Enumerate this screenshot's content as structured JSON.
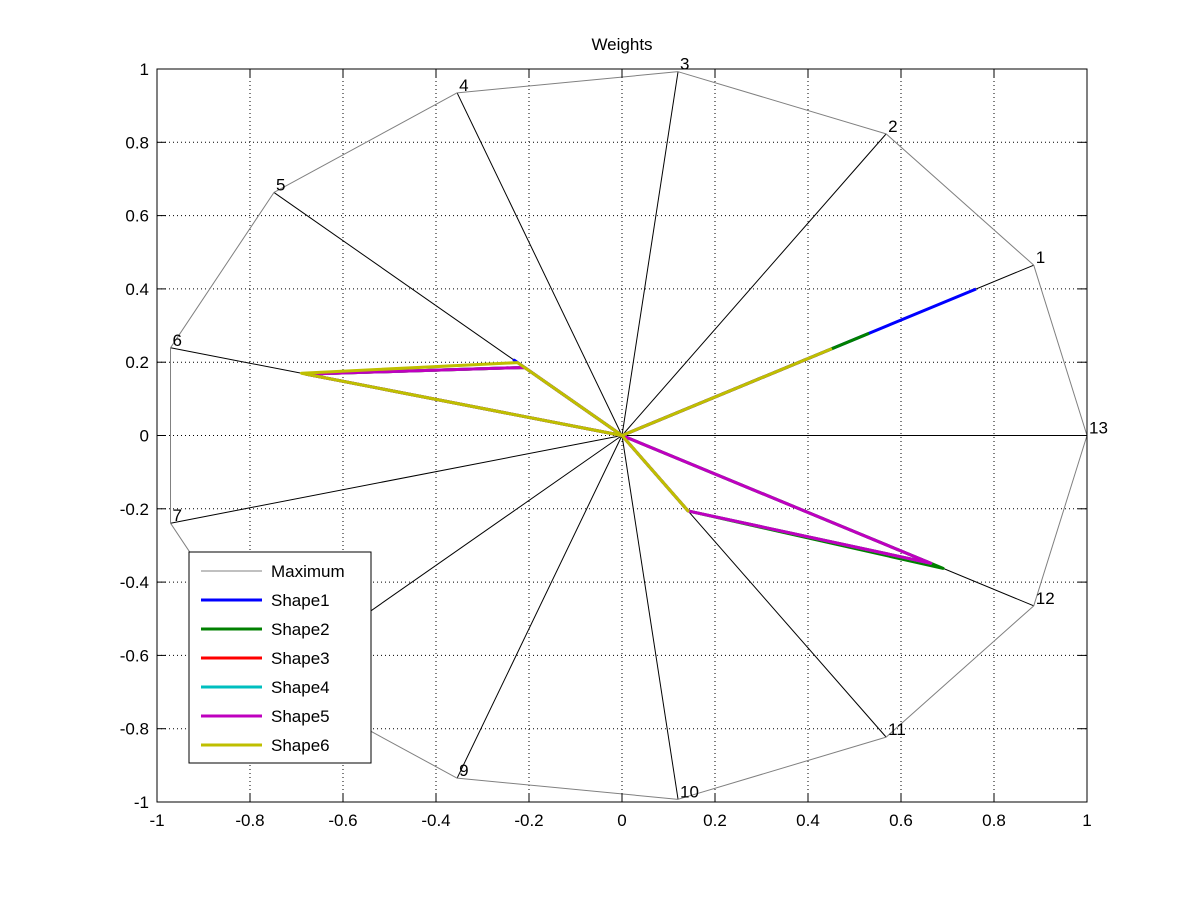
{
  "chart_data": {
    "type": "radar",
    "title": "Weights",
    "xlim": [
      -1,
      1
    ],
    "ylim": [
      -1,
      1
    ],
    "xticks": [
      "-1",
      "-0.8",
      "-0.6",
      "-0.4",
      "-0.2",
      "0",
      "0.2",
      "0.4",
      "0.6",
      "0.8",
      "1"
    ],
    "yticks": [
      "1",
      "0.8",
      "0.6",
      "0.4",
      "0.2",
      "0",
      "-0.2",
      "-0.4",
      "-0.6",
      "-0.8",
      "-1"
    ],
    "grid": true,
    "legend_position": "bottom-left",
    "spokes": [
      "1",
      "2",
      "3",
      "4",
      "5",
      "6",
      "7",
      "8",
      "9",
      "10",
      "11",
      "12",
      "13"
    ],
    "series": [
      {
        "name": "Maximum",
        "color": "#808080",
        "values": [
          1,
          1,
          1,
          1,
          1,
          1,
          1,
          1,
          1,
          1,
          1,
          1,
          1
        ]
      },
      {
        "name": "Shape1",
        "color": "#0000ff",
        "values": [
          0.86,
          0,
          0,
          0,
          0.31,
          0,
          0,
          0,
          0,
          0,
          0,
          0,
          0
        ]
      },
      {
        "name": "Shape2",
        "color": "#008000",
        "values": [
          0.6,
          0,
          0,
          0,
          0.28,
          0.7,
          0,
          0,
          0,
          0,
          0.25,
          0.78,
          0
        ]
      },
      {
        "name": "Shape3",
        "color": "#ff0000",
        "values": [
          0.45,
          0,
          0,
          0,
          0.28,
          0.7,
          0,
          0,
          0,
          0,
          0.25,
          0.75,
          0
        ]
      },
      {
        "name": "Shape4",
        "color": "#00bfbf",
        "values": [
          0.48,
          0,
          0,
          0,
          0.28,
          0.7,
          0,
          0,
          0,
          0,
          0.25,
          0.75,
          0
        ]
      },
      {
        "name": "Shape5",
        "color": "#bf00bf",
        "values": [
          0.5,
          0,
          0,
          0,
          0.28,
          0.7,
          0,
          0,
          0,
          0,
          0.25,
          0.75,
          0
        ]
      },
      {
        "name": "Shape6",
        "color": "#bfbf00",
        "values": [
          0.51,
          0,
          0,
          0,
          0.3,
          0.71,
          0,
          0,
          0,
          0,
          0.25,
          0,
          0
        ]
      }
    ]
  }
}
